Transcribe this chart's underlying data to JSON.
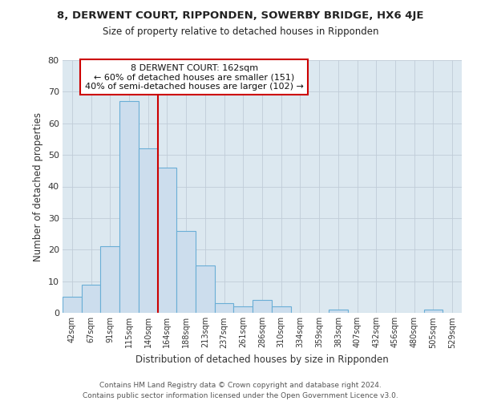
{
  "title1": "8, DERWENT COURT, RIPPONDEN, SOWERBY BRIDGE, HX6 4JE",
  "title2": "Size of property relative to detached houses in Ripponden",
  "xlabel": "Distribution of detached houses by size in Ripponden",
  "ylabel": "Number of detached properties",
  "categories": [
    "42sqm",
    "67sqm",
    "91sqm",
    "115sqm",
    "140sqm",
    "164sqm",
    "188sqm",
    "213sqm",
    "237sqm",
    "261sqm",
    "286sqm",
    "310sqm",
    "334sqm",
    "359sqm",
    "383sqm",
    "407sqm",
    "432sqm",
    "456sqm",
    "480sqm",
    "505sqm",
    "529sqm"
  ],
  "values": [
    5,
    9,
    21,
    67,
    52,
    46,
    26,
    15,
    3,
    2,
    4,
    2,
    0,
    0,
    1,
    0,
    0,
    0,
    0,
    1,
    0
  ],
  "bar_color": "#ccdded",
  "bar_edge_color": "#6aaed6",
  "vline_color": "#cc0000",
  "annotation_line1": "8 DERWENT COURT: 162sqm",
  "annotation_line2": "← 60% of detached houses are smaller (151)",
  "annotation_line3": "40% of semi-detached houses are larger (102) →",
  "annotation_box_color": "#ffffff",
  "annotation_box_edge": "#cc0000",
  "ylim": [
    0,
    80
  ],
  "yticks": [
    0,
    10,
    20,
    30,
    40,
    50,
    60,
    70,
    80
  ],
  "footer1": "Contains HM Land Registry data © Crown copyright and database right 2024.",
  "footer2": "Contains public sector information licensed under the Open Government Licence v3.0.",
  "plot_bg_color": "#dce8f0",
  "fig_bg_color": "#ffffff",
  "figsize": [
    6.0,
    5.0
  ],
  "dpi": 100
}
